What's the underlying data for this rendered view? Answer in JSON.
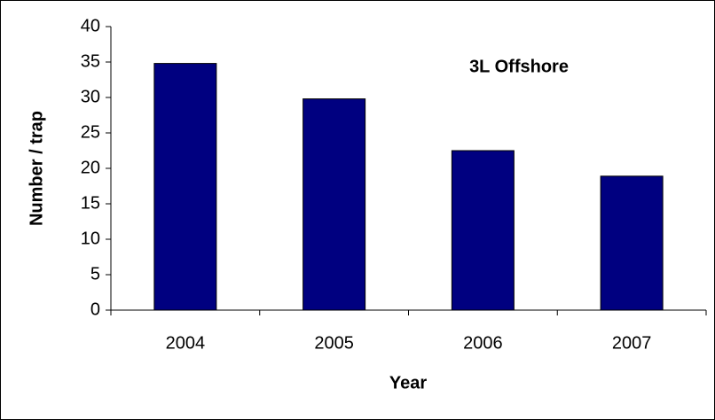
{
  "chart_data": {
    "type": "bar",
    "annotation": "3L  Offshore",
    "x_label": "Year",
    "y_label": "Number / trap",
    "categories": [
      "2004",
      "2005",
      "2006",
      "2007"
    ],
    "values": [
      34.8,
      29.8,
      22.5,
      18.9
    ],
    "color": "#000080",
    "ylim": [
      0,
      40
    ],
    "yticks": [
      0,
      5,
      10,
      15,
      20,
      25,
      30,
      35,
      40
    ],
    "grid": false
  }
}
